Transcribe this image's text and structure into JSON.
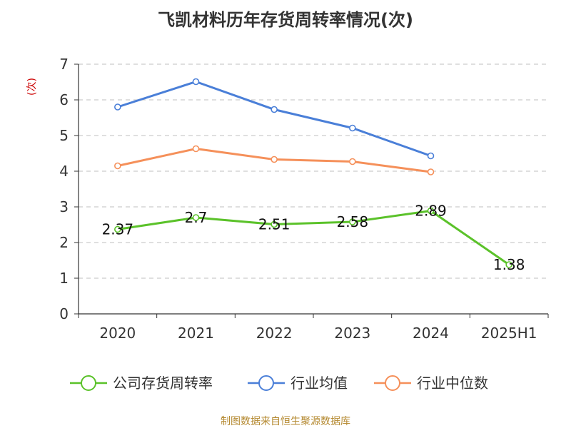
{
  "chart_data": {
    "type": "line",
    "title": "飞凯材料历年存货周转率情况(次)",
    "ylabel": "(次)",
    "categories": [
      "2020",
      "2021",
      "2022",
      "2023",
      "2024",
      "2025H1"
    ],
    "ylim": [
      0,
      7
    ],
    "yticks": [
      "0",
      "1",
      "2",
      "3",
      "4",
      "5",
      "6",
      "7"
    ],
    "grid": "horizontal dashed",
    "legend_position": "bottom",
    "series": [
      {
        "name": "公司存货周转率",
        "color": "#5bc22a",
        "values": [
          2.37,
          2.7,
          2.51,
          2.58,
          2.89,
          1.38
        ],
        "labels": [
          "2.37",
          "2.7",
          "2.51",
          "2.58",
          "2.89",
          "1.38"
        ]
      },
      {
        "name": "行业均值",
        "color": "#4a7fd8",
        "values": [
          5.8,
          6.51,
          5.73,
          5.21,
          4.43,
          null
        ]
      },
      {
        "name": "行业中位数",
        "color": "#f5905a",
        "values": [
          4.15,
          4.63,
          4.33,
          4.27,
          3.98,
          null
        ]
      }
    ]
  },
  "source": "制图数据来自恒生聚源数据库"
}
